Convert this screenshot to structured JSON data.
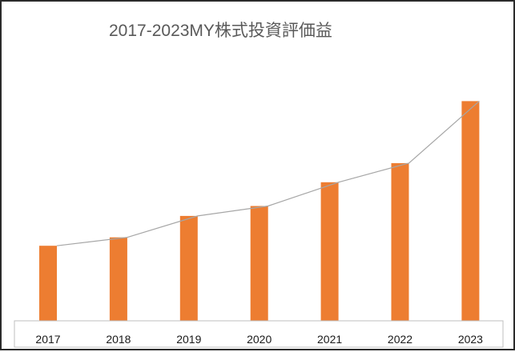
{
  "chart_data": {
    "type": "bar",
    "title": "2017-2023MY株式投資評価益",
    "categories": [
      "2017",
      "2018",
      "2019",
      "2020",
      "2021",
      "2022",
      "2023"
    ],
    "series": [
      {
        "values": [
          98,
          109,
          137,
          150,
          181,
          206,
          287
        ]
      }
    ],
    "trend_line": true,
    "ylim": [
      0,
      300
    ],
    "xlabel": "",
    "ylabel": "",
    "y_axis_visible": false,
    "grid": false,
    "legend": "none",
    "colors": {
      "bar": "#ED7D31",
      "trend_line": "#A6A6A6",
      "axis_box": "#BFBFBF",
      "frame": "#2B2B2B",
      "title": "#595959"
    }
  }
}
